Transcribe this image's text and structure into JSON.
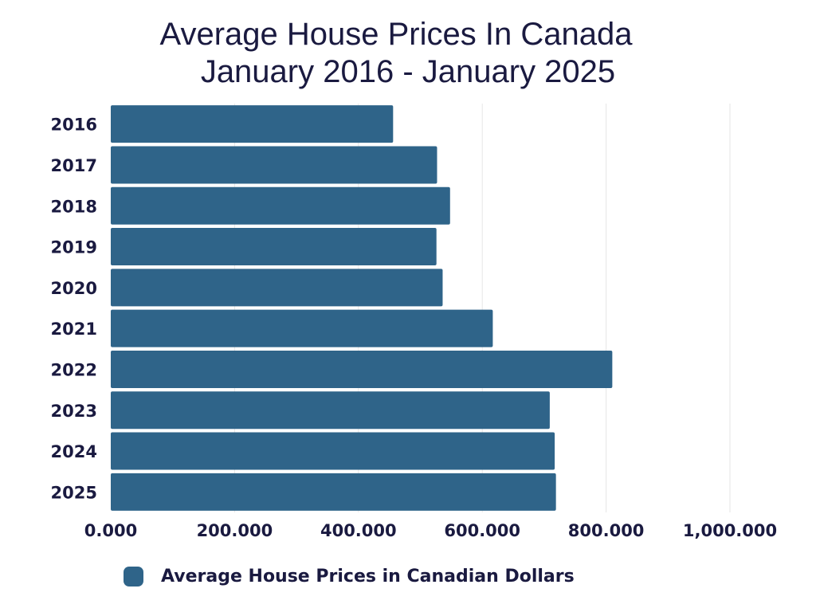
{
  "chart_data": {
    "type": "bar",
    "orientation": "horizontal",
    "title_line1": "Average House Prices In Canada",
    "title_line2": "January 2016 - January 2025",
    "categories": [
      "2016",
      "2017",
      "2018",
      "2019",
      "2020",
      "2021",
      "2022",
      "2023",
      "2024",
      "2025"
    ],
    "series": [
      {
        "name": "Average House Prices in Canadian Dollars",
        "values": [
          456000,
          527000,
          548000,
          526000,
          536000,
          617000,
          810000,
          709000,
          717000,
          719000
        ]
      }
    ],
    "xlim": [
      0,
      1000000
    ],
    "x_ticks": [
      0,
      200000,
      400000,
      600000,
      800000,
      1000000
    ],
    "x_tick_labels": [
      "0.000",
      "200.000",
      "400.000",
      "600.000",
      "800.000",
      "1,000.000"
    ],
    "xlabel": "",
    "ylabel": "",
    "grid": true,
    "legend_position": "bottom",
    "colors": {
      "bar": "#2f6489",
      "text": "#1a1a40",
      "grid": "#e6e6e6"
    }
  }
}
